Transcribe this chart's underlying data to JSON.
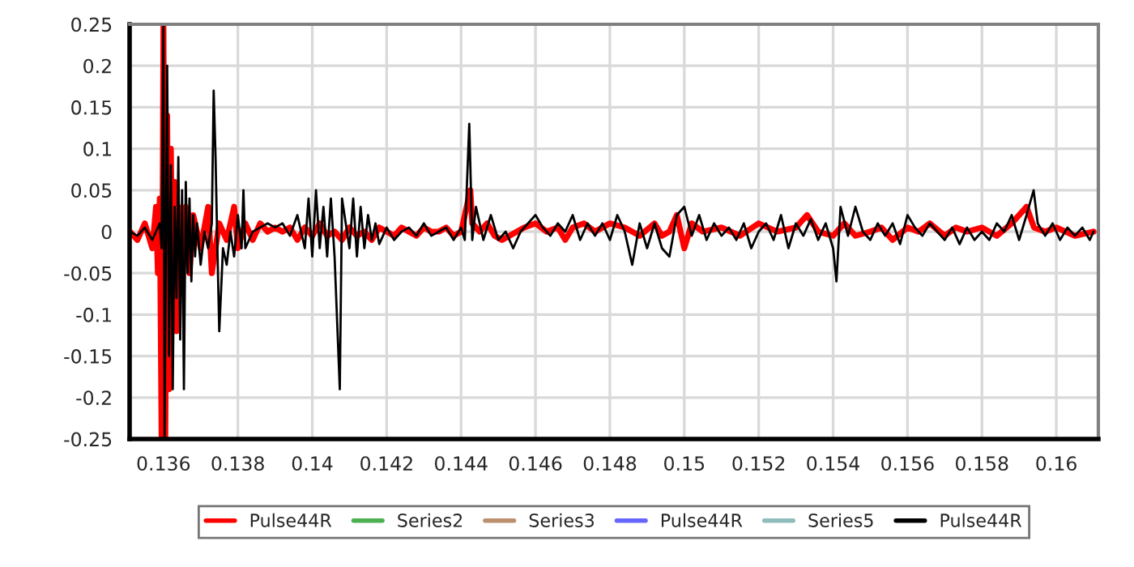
{
  "chart_data": {
    "type": "line",
    "xlim": [
      0.13509,
      0.16113
    ],
    "xticks": [
      0.136,
      0.138,
      0.14,
      0.142,
      0.144,
      0.146,
      0.148,
      0.15,
      0.152,
      0.154,
      0.156,
      0.158,
      0.16
    ],
    "ylim": [
      -0.25,
      0.25
    ],
    "yticks": [
      -0.25,
      -0.2,
      -0.15,
      -0.1,
      -0.05,
      0,
      0.05,
      0.1,
      0.15,
      0.2,
      0.25
    ],
    "grid": true,
    "legend": "bottom",
    "marker": "none",
    "line_style": "solid",
    "series": [
      {
        "name": "Pulse44R",
        "color": "#ff0000",
        "x": [
          0.1351,
          0.1353,
          0.1355,
          0.1357,
          0.1358,
          0.13585,
          0.1359,
          0.13595,
          0.136,
          0.13605,
          0.1361,
          0.13615,
          0.1362,
          0.13625,
          0.1363,
          0.13635,
          0.1364,
          0.1365,
          0.1366,
          0.1367,
          0.1368,
          0.137,
          0.1372,
          0.1373,
          0.1375,
          0.1377,
          0.1379,
          0.138,
          0.1382,
          0.1384,
          0.1386,
          0.1388,
          0.139,
          0.1392,
          0.1394,
          0.1396,
          0.1398,
          0.14,
          0.1402,
          0.1404,
          0.1406,
          0.1408,
          0.141,
          0.1412,
          0.1414,
          0.1416,
          0.1418,
          0.142,
          0.1422,
          0.1424,
          0.1426,
          0.1428,
          0.143,
          0.1432,
          0.1434,
          0.1436,
          0.1438,
          0.144,
          0.14425,
          0.1443,
          0.1445,
          0.1447,
          0.1449,
          0.1451,
          0.1453,
          0.1455,
          0.1457,
          0.146,
          0.1463,
          0.1466,
          0.1468,
          0.147,
          0.1473,
          0.1476,
          0.148,
          0.1484,
          0.1488,
          0.1492,
          0.1494,
          0.1496,
          0.1498,
          0.15,
          0.1502,
          0.1505,
          0.151,
          0.1515,
          0.152,
          0.1525,
          0.153,
          0.1533,
          0.1536,
          0.154,
          0.1543,
          0.1546,
          0.155,
          0.1553,
          0.1556,
          0.156,
          0.1563,
          0.1566,
          0.157,
          0.1573,
          0.1576,
          0.158,
          0.1584,
          0.1588,
          0.1592,
          0.1594,
          0.1597,
          0.16,
          0.1605,
          0.161
        ],
        "values": [
          0,
          -0.01,
          0.01,
          -0.02,
          0.03,
          -0.05,
          0.04,
          -0.25,
          0.25,
          -0.25,
          0.14,
          -0.19,
          0.1,
          -0.12,
          0.06,
          -0.12,
          0.03,
          -0.06,
          0.03,
          -0.05,
          0.02,
          -0.02,
          0.03,
          -0.05,
          0.01,
          -0.01,
          0.03,
          -0.02,
          0.01,
          -0.01,
          0.01,
          0,
          0.005,
          0,
          0.005,
          -0.01,
          0.005,
          -0.005,
          0.01,
          -0.005,
          0,
          -0.01,
          0.005,
          -0.005,
          0,
          -0.01,
          0.005,
          0,
          -0.005,
          0.005,
          0,
          -0.005,
          0.005,
          0,
          0,
          0.005,
          -0.005,
          0,
          0.05,
          0.01,
          0,
          0.01,
          -0.005,
          -0.01,
          -0.005,
          0,
          0.005,
          0.01,
          0,
          0.005,
          -0.01,
          0.005,
          0.01,
          0,
          0.01,
          0.005,
          -0.005,
          0.01,
          -0.005,
          0,
          0.02,
          -0.02,
          0.01,
          0,
          0.005,
          -0.005,
          0.01,
          0,
          0.005,
          0.02,
          0,
          -0.005,
          0.01,
          -0.005,
          0,
          0.005,
          -0.01,
          0.005,
          0,
          0.01,
          -0.005,
          0.005,
          0,
          0.005,
          -0.005,
          0.01,
          0.03,
          0.005,
          0,
          0.005,
          -0.005,
          0
        ]
      },
      {
        "name": "Series2",
        "color": "#4caf50"
      },
      {
        "name": "Series3",
        "color": "#bc8f6f"
      },
      {
        "name": "Pulse44R",
        "color": "#6666ff"
      },
      {
        "name": "Series5",
        "color": "#8fbcbc"
      },
      {
        "name": "Pulse44R",
        "color": "#000000",
        "x": [
          0.1351,
          0.1353,
          0.1355,
          0.1357,
          0.1359,
          0.13595,
          0.136,
          0.13603,
          0.1361,
          0.13615,
          0.1362,
          0.13625,
          0.1363,
          0.13635,
          0.1364,
          0.13645,
          0.1365,
          0.13655,
          0.1366,
          0.13665,
          0.1367,
          0.13675,
          0.1368,
          0.13685,
          0.1369,
          0.137,
          0.1371,
          0.1372,
          0.1373,
          0.13735,
          0.1374,
          0.13745,
          0.1375,
          0.1376,
          0.1377,
          0.1378,
          0.1379,
          0.138,
          0.1381,
          0.13815,
          0.1382,
          0.1384,
          0.1386,
          0.1388,
          0.139,
          0.1392,
          0.1394,
          0.1396,
          0.1398,
          0.1399,
          0.14,
          0.1401,
          0.1402,
          0.1403,
          0.1404,
          0.1405,
          0.1406,
          0.14074,
          0.1408,
          0.141,
          0.1411,
          0.1412,
          0.1413,
          0.1414,
          0.1415,
          0.1416,
          0.1417,
          0.1418,
          0.142,
          0.1422,
          0.1424,
          0.1426,
          0.1428,
          0.143,
          0.1432,
          0.1434,
          0.1436,
          0.1438,
          0.144,
          0.1441,
          0.14422,
          0.1443,
          0.1444,
          0.1446,
          0.1448,
          0.145,
          0.1452,
          0.1454,
          0.1456,
          0.1458,
          0.146,
          0.1462,
          0.1464,
          0.1466,
          0.1468,
          0.147,
          0.1472,
          0.1474,
          0.1476,
          0.1478,
          0.148,
          0.1482,
          0.1484,
          0.1486,
          0.1488,
          0.149,
          0.1492,
          0.1494,
          0.1496,
          0.1498,
          0.15,
          0.1502,
          0.1504,
          0.1506,
          0.1508,
          0.151,
          0.1512,
          0.1514,
          0.1516,
          0.1518,
          0.152,
          0.1522,
          0.1524,
          0.1526,
          0.1528,
          0.153,
          0.1532,
          0.1534,
          0.1536,
          0.1538,
          0.154,
          0.15409,
          0.1542,
          0.1544,
          0.1546,
          0.1548,
          0.155,
          0.1552,
          0.1554,
          0.1556,
          0.1558,
          0.156,
          0.1562,
          0.1564,
          0.1566,
          0.1568,
          0.157,
          0.1572,
          0.1574,
          0.1576,
          0.1578,
          0.158,
          0.1582,
          0.1584,
          0.1586,
          0.1588,
          0.159,
          0.1592,
          0.15939,
          0.1595,
          0.1597,
          0.1599,
          0.1601,
          0.1603,
          0.1605,
          0.1607,
          0.1609,
          0.161
        ],
        "values": [
          0,
          -0.005,
          0.005,
          -0.01,
          0.01,
          -0.02,
          0.25,
          -0.25,
          0.2,
          -0.15,
          0.08,
          -0.19,
          0.03,
          -0.08,
          0.09,
          -0.13,
          0.05,
          -0.19,
          0.06,
          -0.05,
          0.04,
          -0.06,
          0.02,
          -0.03,
          0.01,
          -0.04,
          0,
          -0.02,
          0.01,
          0.17,
          0.09,
          -0.02,
          -0.12,
          -0.02,
          -0.04,
          0,
          -0.03,
          0.02,
          -0.02,
          0.05,
          -0.02,
          0,
          0.005,
          0.01,
          0.005,
          0.01,
          -0.005,
          0.02,
          -0.02,
          0.04,
          -0.03,
          0.05,
          -0.02,
          0.03,
          -0.03,
          0.04,
          -0.03,
          -0.19,
          0.04,
          -0.02,
          0.04,
          -0.03,
          0.03,
          -0.02,
          0.02,
          -0.01,
          0.01,
          -0.015,
          0.005,
          -0.01,
          0,
          0.005,
          -0.005,
          0.01,
          -0.005,
          0,
          0.005,
          -0.01,
          0.005,
          -0.01,
          0.13,
          -0.01,
          0.03,
          -0.01,
          0.02,
          -0.01,
          0,
          -0.02,
          0,
          0.01,
          0.02,
          0.005,
          -0.005,
          0.01,
          0,
          0.02,
          -0.01,
          0.01,
          -0.005,
          0.01,
          -0.01,
          0.02,
          0,
          -0.04,
          0.01,
          -0.02,
          0.01,
          -0.02,
          -0.03,
          0.02,
          0.03,
          -0.005,
          0.02,
          -0.01,
          0.01,
          -0.005,
          0.005,
          -0.01,
          0.01,
          -0.02,
          0,
          0.01,
          -0.01,
          0.02,
          -0.02,
          0.01,
          -0.005,
          0.015,
          -0.01,
          0.01,
          -0.02,
          -0.06,
          0.03,
          -0.005,
          0.03,
          0,
          -0.01,
          0.01,
          -0.005,
          0.01,
          -0.015,
          0.02,
          0.005,
          -0.005,
          0.01,
          0,
          -0.01,
          0.005,
          -0.015,
          0.005,
          -0.01,
          0,
          -0.01,
          0.01,
          0,
          0.02,
          -0.01,
          0.02,
          0.05,
          0.01,
          -0.005,
          0.01,
          -0.01,
          0.005,
          -0.005,
          0.005,
          -0.01,
          0
        ]
      }
    ]
  }
}
